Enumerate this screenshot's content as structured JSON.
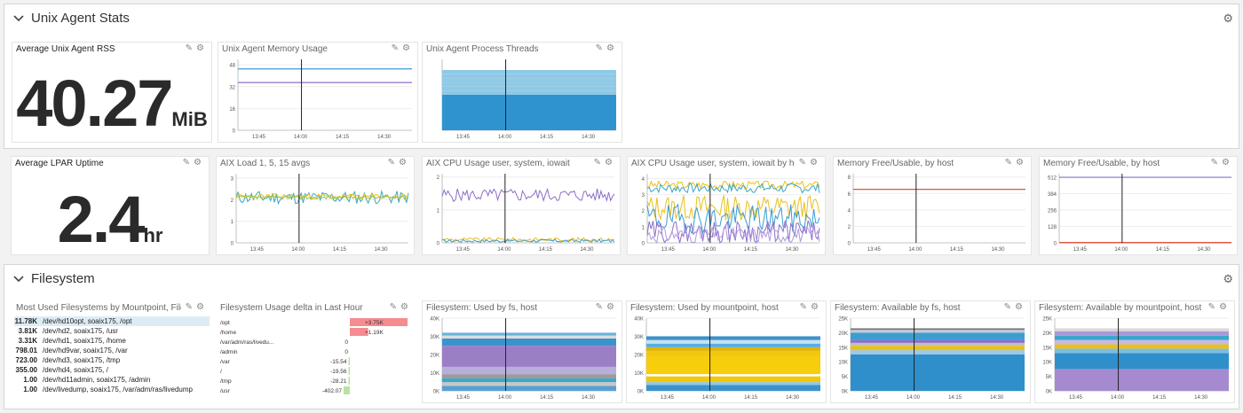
{
  "colors": {
    "blue": "#3b9bd6",
    "purple": "#8e6ec8",
    "yellow": "#e8c11a",
    "red": "#e0533e",
    "teal": "#3aa7c9",
    "pink": "#f58c90",
    "green": "#b9e3a0"
  },
  "groups": {
    "unix": {
      "title": "Unix Agent Stats"
    },
    "fs": {
      "title": "Filesystem"
    }
  },
  "widgets": {
    "rss": {
      "title": "Average Unix Agent RSS",
      "value": "40.27",
      "unit": "MiB"
    },
    "mem": {
      "title": "Unix Agent Memory Usage"
    },
    "threads": {
      "title": "Unix Agent Process Threads"
    },
    "uptime": {
      "title": "Average LPAR Uptime",
      "value": "2.4",
      "unit": "hr"
    },
    "load": {
      "title": "AIX Load 1, 5, 15 avgs"
    },
    "cpu": {
      "title": "AIX CPU Usage user, system, iowait"
    },
    "cpuhost": {
      "title": "AIX CPU Usage user, system, iowait by host, core"
    },
    "memfree1": {
      "title": "Memory Free/Usable, by host"
    },
    "memfree2": {
      "title": "Memory Free/Usable, by host"
    },
    "mostused": {
      "title": "Most Used Filesystems by Mountpoint, Filesystem",
      "rows": [
        {
          "value": "11.78K",
          "name": "/dev/hd10opt, soaix175, /opt"
        },
        {
          "value": "3.81K",
          "name": "/dev/hd2, soaix175, /usr"
        },
        {
          "value": "3.31K",
          "name": "/dev/hd1, soaix175, /home"
        },
        {
          "value": "798.01",
          "name": "/dev/hd9var, soaix175, /var"
        },
        {
          "value": "723.00",
          "name": "/dev/hd3, soaix175, /tmp"
        },
        {
          "value": "355.00",
          "name": "/dev/hd4, soaix175, /"
        },
        {
          "value": "1.00",
          "name": "/dev/hd11admin, soaix175, /admin"
        },
        {
          "value": "1.00",
          "name": "/dev/livedump, soaix175, /var/adm/ras/livedump"
        }
      ]
    },
    "delta": {
      "title": "Filesystem Usage delta in Last Hour",
      "rows": [
        {
          "name": "/opt",
          "label": "+3.75K",
          "value": 3750
        },
        {
          "name": "/home",
          "label": "+1.19K",
          "value": 1190
        },
        {
          "name": "/var/adm/ras/livedu...",
          "label": "0",
          "value": 0
        },
        {
          "name": "/admin",
          "label": "0",
          "value": 0
        },
        {
          "name": "/var",
          "label": "-15.54",
          "value": -15.54
        },
        {
          "name": "/",
          "label": "-19.56",
          "value": -19.56
        },
        {
          "name": "/tmp",
          "label": "-28.21",
          "value": -28.21
        },
        {
          "name": "/usr",
          "label": "-402.07",
          "value": -402.07
        }
      ]
    },
    "fsused": {
      "title": "Filesystem: Used by fs, host"
    },
    "mpused": {
      "title": "Filesystem: Used by mountpoint, host"
    },
    "fsavail": {
      "title": "Filesystem: Available by fs, host"
    },
    "mpavail": {
      "title": "Filesystem: Available by mountpoint, host"
    }
  },
  "chart_data": [
    {
      "type": "line",
      "title": "Unix Agent Memory Usage",
      "x": [
        "13:45",
        "14:00",
        "14:15",
        "14:30"
      ],
      "ylim": [
        0,
        52
      ],
      "yticks": [
        0,
        16,
        32,
        48
      ],
      "series": [
        {
          "values": [
            45,
            45,
            45,
            45
          ]
        },
        {
          "values": [
            35,
            35,
            35,
            35
          ]
        }
      ]
    },
    {
      "type": "area",
      "title": "Unix Agent Process Threads",
      "x": [
        "13:45",
        "14:00",
        "14:15",
        "14:30"
      ],
      "ylim": [
        0,
        20
      ],
      "series": [
        {
          "values": [
            10,
            10,
            10,
            10
          ]
        },
        {
          "values": [
            7,
            7,
            7,
            7
          ]
        }
      ]
    },
    {
      "type": "line",
      "title": "AIX Load 1, 5, 15 avgs",
      "x": [
        "13:45",
        "14:00",
        "14:15",
        "14:30"
      ],
      "ylim": [
        0,
        3.2
      ],
      "yticks": [
        0,
        1,
        2,
        3
      ],
      "series": [
        {
          "values": [
            2.1,
            2.2,
            2.3,
            2.3
          ]
        },
        {
          "values": [
            2.0,
            2.1,
            2.2,
            2.2
          ]
        },
        {
          "values": [
            2.1,
            2.1,
            2.2,
            2.2
          ]
        }
      ]
    },
    {
      "type": "line",
      "title": "AIX CPU Usage user, system, iowait",
      "x": [
        "13:45",
        "14:00",
        "14:15",
        "14:30"
      ],
      "ylim": [
        0,
        2.1
      ],
      "yticks": [
        0,
        1,
        2
      ],
      "series": [
        {
          "values": [
            1.5,
            1.4,
            1.5,
            1.5
          ]
        },
        {
          "values": [
            0.1,
            0.1,
            0.1,
            0.1
          ]
        },
        {
          "values": [
            0.05,
            0.05,
            0.05,
            0.05
          ]
        }
      ]
    },
    {
      "type": "line",
      "title": "AIX CPU Usage user, system, iowait by host, core",
      "ylim": [
        0,
        4.3
      ],
      "yticks": [
        0,
        1,
        2,
        3,
        4
      ],
      "x": [
        "13:45",
        "14:00",
        "14:15",
        "14:30"
      ]
    },
    {
      "type": "line",
      "title": "Memory Free/Usable, by host",
      "x": [
        "13:45",
        "14:00",
        "14:15",
        "14:30"
      ],
      "ylim": [
        0,
        8.4
      ],
      "yticks": [
        0,
        2,
        4,
        6,
        8
      ],
      "series": [
        {
          "values": [
            6.5,
            6.5,
            6.5,
            6.5
          ]
        }
      ]
    },
    {
      "type": "line",
      "title": "Memory Free/Usable, by host",
      "x": [
        "13:45",
        "14:00",
        "14:15",
        "14:30"
      ],
      "ylim": [
        0,
        540
      ],
      "yticks": [
        0,
        128,
        256,
        384,
        512
      ],
      "series": [
        {
          "values": [
            512,
            512,
            512,
            512
          ]
        },
        {
          "values": [
            2,
            2,
            2,
            2
          ]
        }
      ]
    },
    {
      "type": "area",
      "title": "Filesystem: Used by fs, host",
      "x": [
        "13:45",
        "14:00",
        "14:15",
        "14:30"
      ],
      "ylim": [
        0,
        40000
      ],
      "yticks": [
        "0K",
        "10K",
        "20K",
        "30K",
        "40K"
      ]
    },
    {
      "type": "area",
      "title": "Filesystem: Used by mountpoint, host",
      "x": [
        "13:45",
        "14:00",
        "14:15",
        "14:30"
      ],
      "ylim": [
        0,
        40000
      ],
      "yticks": [
        "0K",
        "10K",
        "20K",
        "30K",
        "40K"
      ]
    },
    {
      "type": "area",
      "title": "Filesystem: Available by fs, host",
      "x": [
        "13:45",
        "14:00",
        "14:15",
        "14:30"
      ],
      "ylim": [
        0,
        25000
      ],
      "yticks": [
        "0K",
        "5K",
        "10K",
        "15K",
        "20K",
        "25K"
      ]
    },
    {
      "type": "area",
      "title": "Filesystem: Available by mountpoint, host",
      "x": [
        "13:45",
        "14:00",
        "14:15",
        "14:30"
      ],
      "ylim": [
        0,
        25000
      ],
      "yticks": [
        "0K",
        "5K",
        "10K",
        "15K",
        "20K",
        "25K"
      ]
    }
  ]
}
